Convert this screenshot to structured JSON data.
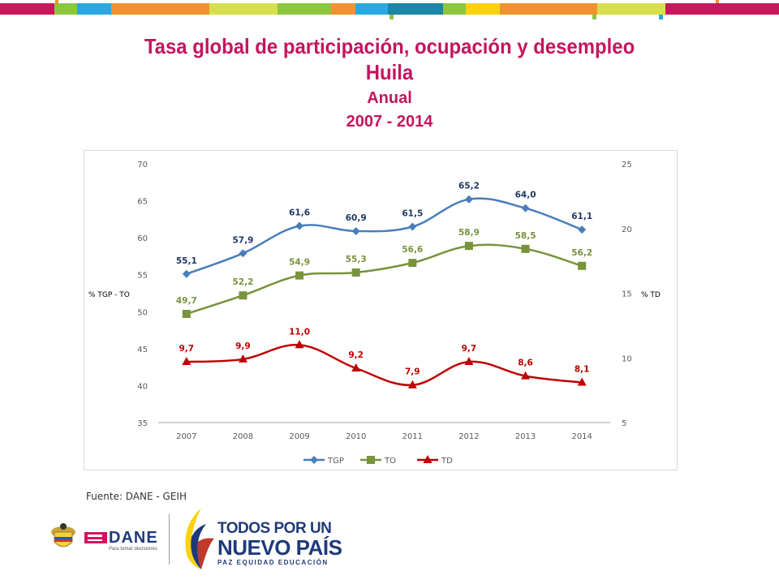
{
  "header": {
    "title_line1": "Tasa global de participación, ocupación y desempleo",
    "title_line2": "Huila",
    "title_line3": "Anual",
    "title_line4": "2007 - 2014"
  },
  "footer": {
    "source": "Fuente: DANE - GEIH",
    "dane_logo_text": "DANE",
    "dane_logo_sub": "Para tomar decisiones",
    "campaign_line1": "TODOS POR UN",
    "campaign_line2": "NUEVO PAÍS",
    "campaign_line3": "PAZ  EQUIDAD  EDUCACIÓN"
  },
  "colors": {
    "title": "#c4155e",
    "tgp": "#4a7ebb",
    "to": "#77933c",
    "td": "#c00000",
    "tgp_label": "#1f3864",
    "to_label": "#77933c",
    "td_label": "#c00000"
  },
  "chart_data": {
    "type": "line",
    "categories": [
      "2007",
      "2008",
      "2009",
      "2010",
      "2011",
      "2012",
      "2013",
      "2014"
    ],
    "series": [
      {
        "name": "TGP",
        "axis": "left",
        "marker": "diamond",
        "values": [
          55.1,
          57.9,
          61.6,
          60.9,
          61.5,
          65.2,
          64.0,
          61.1
        ],
        "labels": [
          "55,1",
          "57,9",
          "61,6",
          "60,9",
          "61,5",
          "65,2",
          "64,0",
          "61,1"
        ]
      },
      {
        "name": "TO",
        "axis": "left",
        "marker": "square",
        "values": [
          49.7,
          52.2,
          54.9,
          55.3,
          56.6,
          58.9,
          58.5,
          56.2
        ],
        "labels": [
          "49,7",
          "52,2",
          "54,9",
          "55,3",
          "56,6",
          "58,9",
          "58,5",
          "56,2"
        ]
      },
      {
        "name": "TD",
        "axis": "right",
        "marker": "triangle",
        "values": [
          9.7,
          9.9,
          11.0,
          9.2,
          7.9,
          9.7,
          8.6,
          8.1
        ],
        "labels": [
          "9,7",
          "9,9",
          "11,0",
          "9,2",
          "7,9",
          "9,7",
          "8,6",
          "8,1"
        ]
      }
    ],
    "left_axis": {
      "label": "%  TGP - TO",
      "ylim": [
        35,
        70
      ],
      "ticks": [
        "35",
        "40",
        "45",
        "50",
        "55",
        "60",
        "65",
        "70"
      ]
    },
    "right_axis": {
      "label": "%    TD",
      "ylim": [
        5,
        25
      ],
      "ticks": [
        "5",
        "10",
        "15",
        "20",
        "25"
      ]
    },
    "grid": false,
    "legend_position": "bottom"
  }
}
